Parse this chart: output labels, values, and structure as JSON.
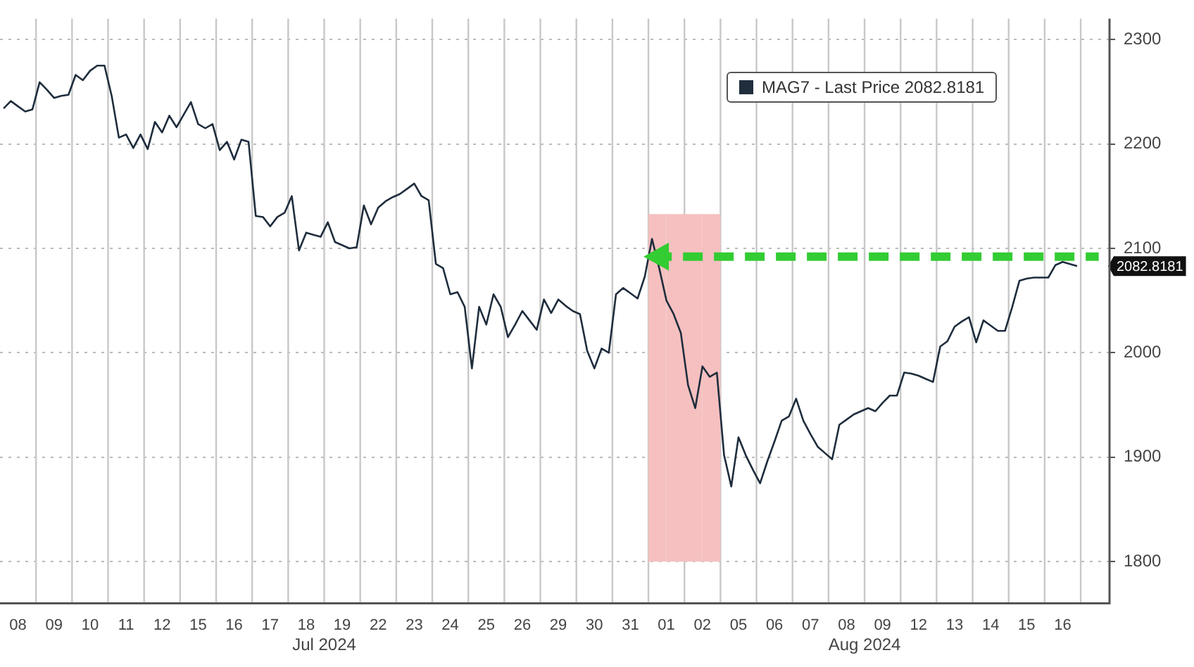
{
  "chart_data": {
    "type": "line",
    "legend": "top right",
    "grid": true,
    "ylim": [
      1760,
      2320
    ],
    "yticks": [
      1800,
      1900,
      2000,
      2100,
      2200,
      2300
    ],
    "categories": [
      null,
      null,
      "08",
      null,
      null,
      null,
      null,
      "09",
      null,
      null,
      null,
      null,
      "10",
      null,
      null,
      null,
      null,
      "11",
      null,
      null,
      null,
      null,
      "12",
      null,
      null,
      null,
      null,
      "15",
      null,
      null,
      null,
      null,
      "16",
      null,
      null,
      null,
      null,
      "17",
      null,
      null,
      null,
      null,
      "18",
      null,
      null,
      null,
      null,
      "19",
      null,
      null,
      null,
      null,
      "22",
      null,
      null,
      null,
      null,
      "23",
      null,
      null,
      null,
      null,
      "24",
      null,
      null,
      null,
      null,
      "25",
      null,
      null,
      null,
      null,
      "26",
      null,
      null,
      null,
      null,
      "29",
      null,
      null,
      null,
      null,
      "30",
      null,
      null,
      null,
      null,
      "31",
      null,
      null,
      null,
      null,
      "01",
      null,
      null,
      null,
      null,
      "02",
      null,
      null,
      null,
      null,
      "05",
      null,
      null,
      null,
      null,
      "06",
      null,
      null,
      null,
      null,
      "07",
      null,
      null,
      null,
      null,
      "08",
      null,
      null,
      null,
      null,
      "09",
      null,
      null,
      null,
      null,
      "12",
      null,
      null,
      null,
      null,
      "13",
      null,
      null,
      null,
      null,
      "14",
      null,
      null,
      null,
      null,
      "15",
      null,
      null,
      null,
      null,
      "16",
      null,
      null,
      null,
      null,
      null,
      null
    ],
    "bands": [
      {
        "axis": "x",
        "from": "01",
        "to": "02",
        "color": "#f6c0c0"
      }
    ],
    "annotations": [
      "Jul 2024",
      "Aug 2024",
      "2082.8181"
    ],
    "series": [
      {
        "name": "MAG7 - Last Price 2082.8181",
        "color": "#1f2d3d",
        "values": [
          2234,
          2241,
          2236,
          2231,
          2233,
          2259,
          2252,
          2244,
          2246,
          2247,
          2266,
          2261,
          2270,
          2275,
          2275,
          2246,
          2206,
          2209,
          2196,
          2209,
          2195,
          2221,
          2211,
          2227,
          2216,
          2228,
          2240,
          2219,
          2215,
          2219,
          2194,
          2202,
          2185,
          2204,
          2202,
          2131,
          2130,
          2121,
          2130,
          2134,
          2150,
          2098,
          2115,
          2113,
          2111,
          2125,
          2106,
          2103,
          2100,
          2101,
          2141,
          2123,
          2139,
          2145,
          2149,
          2152,
          2157,
          2162,
          2150,
          2146,
          2085,
          2081,
          2056,
          2058,
          2044,
          1985,
          2044,
          2027,
          2056,
          2044,
          2015,
          2027,
          2040,
          2031,
          2022,
          2051,
          2038,
          2051,
          2045,
          2040,
          2037,
          2002,
          1985,
          2004,
          2000,
          2056,
          2062,
          2057,
          2052,
          2073,
          2109,
          2081,
          2050,
          2037,
          2019,
          1969,
          1947,
          1987,
          1977,
          1981,
          1902,
          1872,
          1919,
          1902,
          1888,
          1875,
          1896,
          1915,
          1935,
          1939,
          1956,
          1935,
          1922,
          1910,
          1904,
          1898,
          1931,
          1936,
          1941,
          1944,
          1947,
          1944,
          1952,
          1959,
          1959,
          1981,
          1980,
          1978,
          1975,
          1972,
          2006,
          2011,
          2025,
          2030,
          2034,
          2010,
          2031,
          2026,
          2021,
          2021,
          2044,
          2069,
          2071,
          2072,
          2072,
          2072,
          2084,
          2087,
          2085,
          2083,
          null,
          null,
          null,
          null
        ]
      },
      {
        "color": "#33cc33",
        "line_style": "dashed",
        "values": [
          null,
          null,
          null,
          null,
          null,
          null,
          null,
          null,
          null,
          null,
          null,
          null,
          null,
          null,
          null,
          null,
          null,
          null,
          null,
          null,
          null,
          null,
          null,
          null,
          null,
          null,
          null,
          null,
          null,
          null,
          null,
          null,
          null,
          null,
          null,
          null,
          null,
          null,
          null,
          null,
          null,
          null,
          null,
          null,
          null,
          null,
          null,
          null,
          null,
          null,
          null,
          null,
          null,
          null,
          null,
          null,
          null,
          null,
          null,
          null,
          null,
          null,
          null,
          null,
          null,
          null,
          null,
          null,
          null,
          null,
          null,
          null,
          null,
          null,
          null,
          null,
          null,
          null,
          null,
          null,
          null,
          null,
          null,
          null,
          null,
          null,
          null,
          null,
          null,
          null,
          2092,
          2092,
          2092,
          2092,
          2092,
          2092,
          2092,
          2092,
          2092,
          2092,
          2092,
          2092,
          2092,
          2092,
          2092,
          2092,
          2092,
          2092,
          2092,
          2092,
          2092,
          2092,
          2092,
          2092,
          2092,
          2092,
          2092,
          2092,
          2092,
          2092,
          2092,
          2092,
          2092,
          2092,
          2092,
          2092,
          2092,
          2092,
          2092,
          2092,
          2092,
          2092,
          2092,
          2092,
          2092,
          2092,
          2092,
          2092,
          2092,
          2092,
          2092,
          2092,
          2092,
          2092,
          2092,
          2092,
          2092,
          2092,
          2092,
          2092,
          2092,
          2092,
          2092,
          null
        ]
      }
    ]
  }
}
